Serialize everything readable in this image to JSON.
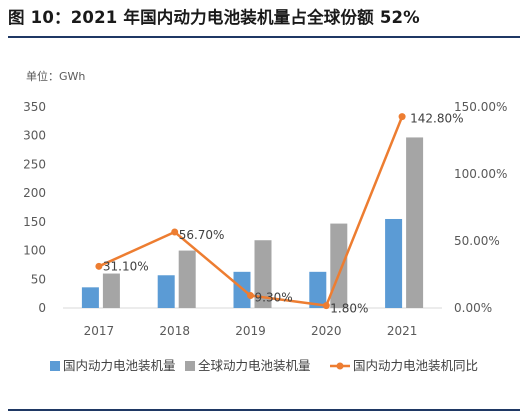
{
  "title": "图 10：2021 年国内动力电池装机量占全球份额 52%",
  "unit_label": "单位：GWh",
  "chart_data": {
    "type": "bar",
    "categories": [
      "2017",
      "2018",
      "2019",
      "2020",
      "2021"
    ],
    "series": [
      {
        "name": "国内动力电池装机量",
        "type": "bar",
        "axis": "left",
        "color": "#5b9bd5",
        "values": [
          36,
          57,
          63,
          63,
          155
        ]
      },
      {
        "name": "全球动力电池装机量",
        "type": "bar",
        "axis": "left",
        "color": "#a5a5a5",
        "values": [
          60,
          100,
          118,
          147,
          297
        ]
      },
      {
        "name": "国内动力电池装机同比",
        "type": "line",
        "axis": "right",
        "color": "#ed7d31",
        "values": [
          31.1,
          56.7,
          9.3,
          1.8,
          142.8
        ],
        "labels": [
          "31.10%",
          "56.70%",
          "9.30%",
          "1.80%",
          "142.80%"
        ]
      }
    ],
    "left_axis": {
      "min": 0,
      "max": 350,
      "ticks": [
        "0",
        "50",
        "100",
        "150",
        "200",
        "250",
        "300",
        "350"
      ]
    },
    "right_axis": {
      "min": 0,
      "max": 150,
      "ticks": [
        "0.00%",
        "50.00%",
        "100.00%",
        "150.00%"
      ]
    },
    "grid": false,
    "legend_position": "bottom"
  }
}
